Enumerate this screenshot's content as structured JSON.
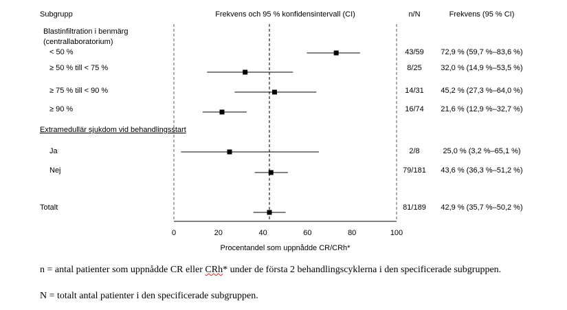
{
  "chart_data": {
    "type": "forest",
    "title": "Frekvens och 95 % konfidensintervall (CI)",
    "xlabel": "Procentandel som uppnådde CR/CRh*",
    "xlim": [
      0,
      100
    ],
    "xticks": [
      0,
      20,
      40,
      60,
      80,
      100
    ],
    "reference_line": 42.9,
    "columns": {
      "subgroup": "Subgrupp",
      "nN": "n/N",
      "freq": "Frekvens (95 % CI)"
    },
    "groups": [
      {
        "label_lines": [
          "Blastinfiltration i benmärg",
          "(centrallaboratorium)"
        ]
      },
      {
        "label_lines": [
          "Extramedullär sjukdom vid behandlingsstart"
        ]
      }
    ],
    "rows": [
      {
        "group": 0,
        "label": "< 50 %",
        "nN": "43/59",
        "freq": "72,9 % (59,7 %–83,6 %)",
        "est": 72.9,
        "lo": 59.7,
        "hi": 83.6
      },
      {
        "group": 0,
        "label": "≥ 50 % till < 75 %",
        "nN": "8/25",
        "freq": "32,0 % (14,9 %–53,5 %)",
        "est": 32.0,
        "lo": 14.9,
        "hi": 53.5
      },
      {
        "group": 0,
        "label": "≥ 75 % till < 90 %",
        "nN": "14/31",
        "freq": "45,2 % (27,3 %–64,0 %)",
        "est": 45.2,
        "lo": 27.3,
        "hi": 64.0
      },
      {
        "group": 0,
        "label": "≥ 90 %",
        "nN": "16/74",
        "freq": "21,6 % (12,9 %–32,7 %)",
        "est": 21.6,
        "lo": 12.9,
        "hi": 32.7
      },
      {
        "group": 1,
        "label": "Ja",
        "nN": "2/8",
        "freq": "25,0 % (3,2 %–65,1 %)",
        "est": 25.0,
        "lo": 3.2,
        "hi": 65.1
      },
      {
        "group": 1,
        "label": "Nej",
        "nN": "79/181",
        "freq": "43,6 % (36,3 %–51,2 %)",
        "est": 43.6,
        "lo": 36.3,
        "hi": 51.2
      },
      {
        "group": null,
        "label": "Totalt",
        "nN": "81/189",
        "freq": "42,9 % (35,7 %–50,2 %)",
        "est": 42.9,
        "lo": 35.7,
        "hi": 50.2
      }
    ]
  },
  "footnotes": {
    "n_line_a": "n = antal patienter som uppnådde CR eller ",
    "n_line_crh": "CRh",
    "n_line_b": "* under de första 2 behandlingscyklerna i den specificerade subgruppen.",
    "N_line": "N = totalt antal patienter i den specificerade subgruppen."
  }
}
